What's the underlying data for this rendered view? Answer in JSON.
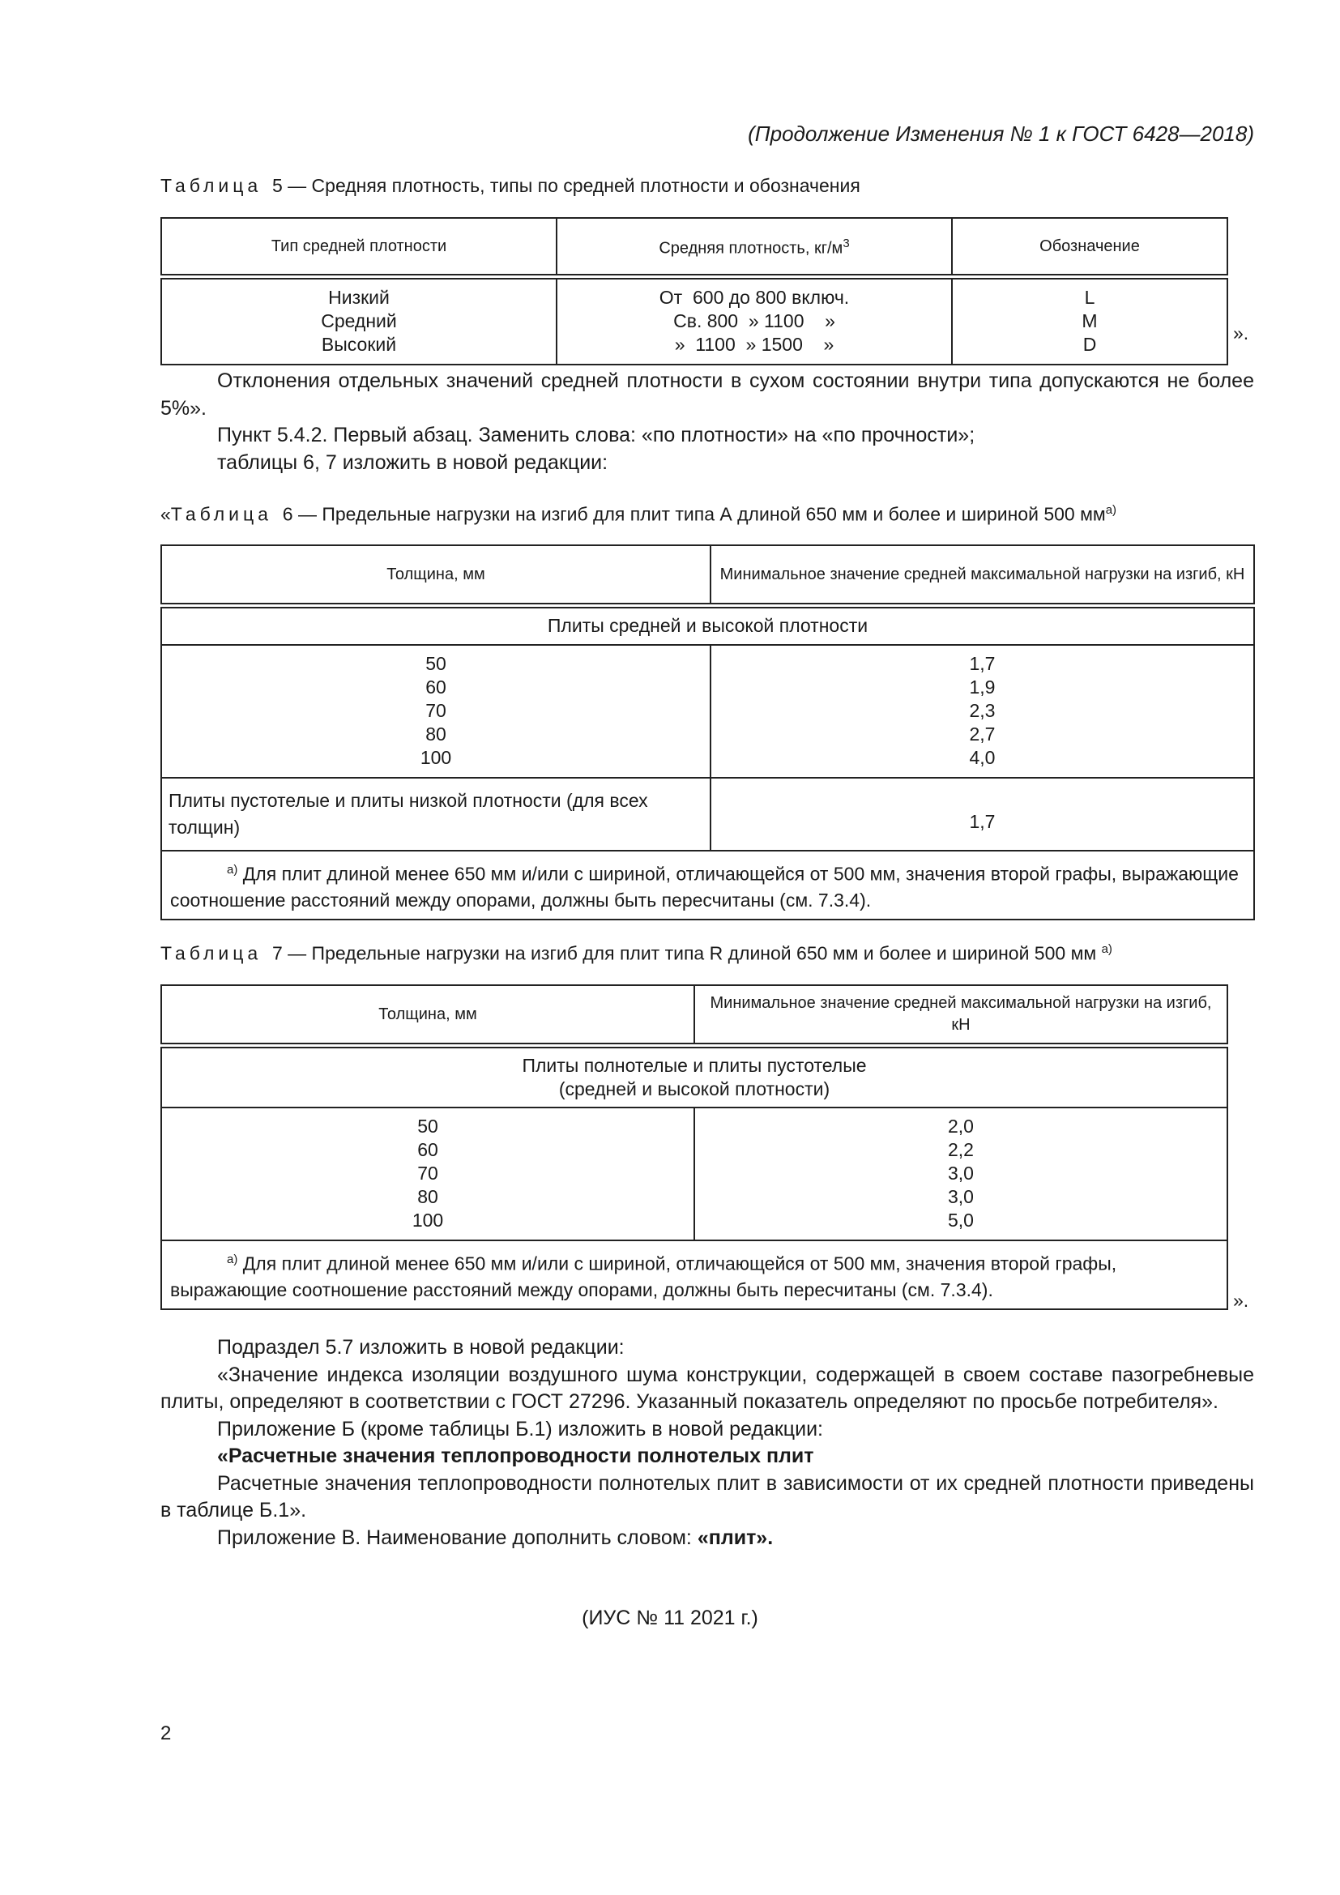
{
  "header": "(Продолжение Изменения № 1 к ГОСТ 6428—2018)",
  "table5": {
    "caption_word": "Таблица",
    "caption_rest": "5 — Средняя плотность, типы по средней плотности и обозначения",
    "headers": [
      "Тип средней плотности",
      "Средняя плотность, кг/м",
      "Обозначение"
    ],
    "unit_sup": "3",
    "types": [
      "Низкий",
      "Средний",
      "Высокий"
    ],
    "densities": [
      "От  600 до 800 включ.",
      "Св. 800  » 1100    »",
      "»  1100  » 1500    »"
    ],
    "codes": [
      "L",
      "M",
      "D"
    ],
    "closing": "»."
  },
  "paragraph1": [
    "Отклонения отдельных значений средней плотности в сухом состоянии внутри типа допускаются не более 5%».",
    "Пункт 5.4.2. Первый абзац. Заменить слова: «по плотности» на «по прочности»;",
    "таблицы 6, 7 изложить в новой редакции:"
  ],
  "table6": {
    "caption_prefix": "«",
    "caption_word": "Таблица",
    "caption_rest": "6 — Предельные нагрузки на изгиб для плит типа А длиной 650 мм и более и шириной 500 мм",
    "caption_sup": "а)",
    "headers": [
      "Толщина, мм",
      "Минимальное значение средней максимальной нагрузки на изгиб, кН"
    ],
    "group": "Плиты средней и высокой плотности",
    "thickness": [
      "50",
      "60",
      "70",
      "80",
      "100"
    ],
    "loads": [
      "1,7",
      "1,9",
      "2,3",
      "2,7",
      "4,0"
    ],
    "hollow_label": "Плиты пустотелые и плиты низкой плотности (для всех толщин)",
    "hollow_value": "1,7",
    "note_sup": "а)",
    "note": "Для плит длиной менее 650 мм и/или с шириной, отличающейся от 500 мм, значения второй графы, выражающие соотношение расстояний между опорами, должны быть пересчитаны (см. 7.3.4)."
  },
  "table7": {
    "caption_word": "Таблица",
    "caption_rest": "7 — Предельные нагрузки на изгиб для плит типа R длиной 650 мм и более и шириной 500 мм",
    "caption_sup": "а)",
    "headers": [
      "Толщина, мм",
      "Минимальное значение средней максимальной нагрузки на изгиб, кН"
    ],
    "group_line1": "Плиты полнотелые и плиты пустотелые",
    "group_line2": "(средней и высокой плотности)",
    "thickness": [
      "50",
      "60",
      "70",
      "80",
      "100"
    ],
    "loads": [
      "2,0",
      "2,2",
      "3,0",
      "3,0",
      "5,0"
    ],
    "note_sup": "а)",
    "note": "Для плит длиной менее 650 мм и/или с шириной, отличающейся от 500 мм, значения второй графы, выражающие соотношение расстояний между опорами, должны быть пересчитаны (см. 7.3.4).",
    "closing": "»."
  },
  "paragraph2": {
    "p1": "Подраздел 5.7 изложить в новой редакции:",
    "p2": "«Значение индекса изоляции воздушного шума конструкции, содержащей в своем составе пазогребневые плиты, определяют в соответствии с ГОСТ 27296. Указанный показатель определяют по просьбе потребителя».",
    "p3": "Приложение Б (кроме таблицы Б.1) изложить в новой редакции:",
    "p4": "«Расчетные значения теплопроводности полнотелых плит",
    "p5": "Расчетные значения теплопроводности полнотелых плит в зависимости от их средней плотности приведены в таблице Б.1».",
    "p6_text": "Приложение В. Наименование дополнить словом: ",
    "p6_bold": "«плит»."
  },
  "ius": "(ИУС № 11  2021 г.)",
  "page_number": "2"
}
